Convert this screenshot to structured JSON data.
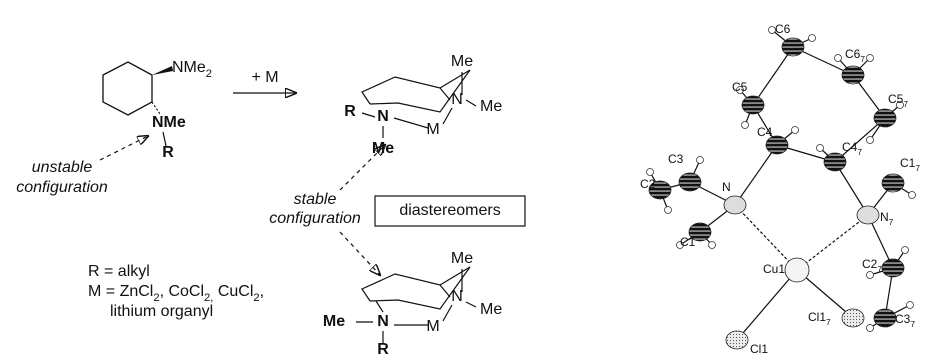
{
  "reactant": {
    "n_top": [
      {
        "text": "NMe"
      },
      {
        "sub": "2"
      }
    ],
    "n_bottom": "NMe",
    "r": "R",
    "note": [
      "unstable",
      "configuration"
    ]
  },
  "reagent": "+  M",
  "product_a": {
    "me_top": "Me",
    "n_right": "N",
    "me_right": "Me",
    "r": "R",
    "n_left": "N",
    "m": "M",
    "me_bottom": "Me"
  },
  "product_b": {
    "me_top": "Me",
    "n_right": "N",
    "me_right": "Me",
    "me_left": "Me",
    "n_left": "N",
    "m": "M",
    "r": "R"
  },
  "note": [
    "stable",
    "configuration"
  ],
  "box": "diastereomers",
  "legend": {
    "r": "R = alkyl",
    "m": [
      {
        "text": "M = ZnCl"
      },
      {
        "sub": "2"
      },
      {
        "text": ", CoCl"
      },
      {
        "sub": "2,"
      },
      {
        "text": " CuCl"
      },
      {
        "sub": "2"
      },
      {
        "text": ","
      }
    ],
    "m2": "lithium organyl"
  },
  "crystal": {
    "atoms": [
      [
        {
          "text": "C6"
        }
      ],
      [
        {
          "text": "C6"
        },
        {
          "sub": "7"
        }
      ],
      [
        {
          "text": "C5"
        }
      ],
      [
        {
          "text": "C5"
        },
        {
          "sub": "7"
        }
      ],
      [
        {
          "text": "C4"
        }
      ],
      [
        {
          "text": "C4"
        },
        {
          "sub": "7"
        }
      ],
      [
        {
          "text": "C3"
        }
      ],
      [
        {
          "text": "C1"
        },
        {
          "sub": "7"
        }
      ],
      [
        {
          "text": "C2"
        }
      ],
      [
        {
          "text": "N"
        }
      ],
      [
        {
          "text": "N"
        },
        {
          "sub": "7"
        }
      ],
      [
        {
          "text": "C1"
        }
      ],
      [
        {
          "text": "Cu1"
        }
      ],
      [
        {
          "text": "C2"
        },
        {
          "sub": "7"
        }
      ],
      [
        {
          "text": "Cl1"
        },
        {
          "sub": "7"
        }
      ],
      [
        {
          "text": "C3"
        },
        {
          "sub": "7"
        }
      ],
      [
        {
          "text": "Cl1"
        }
      ]
    ]
  }
}
